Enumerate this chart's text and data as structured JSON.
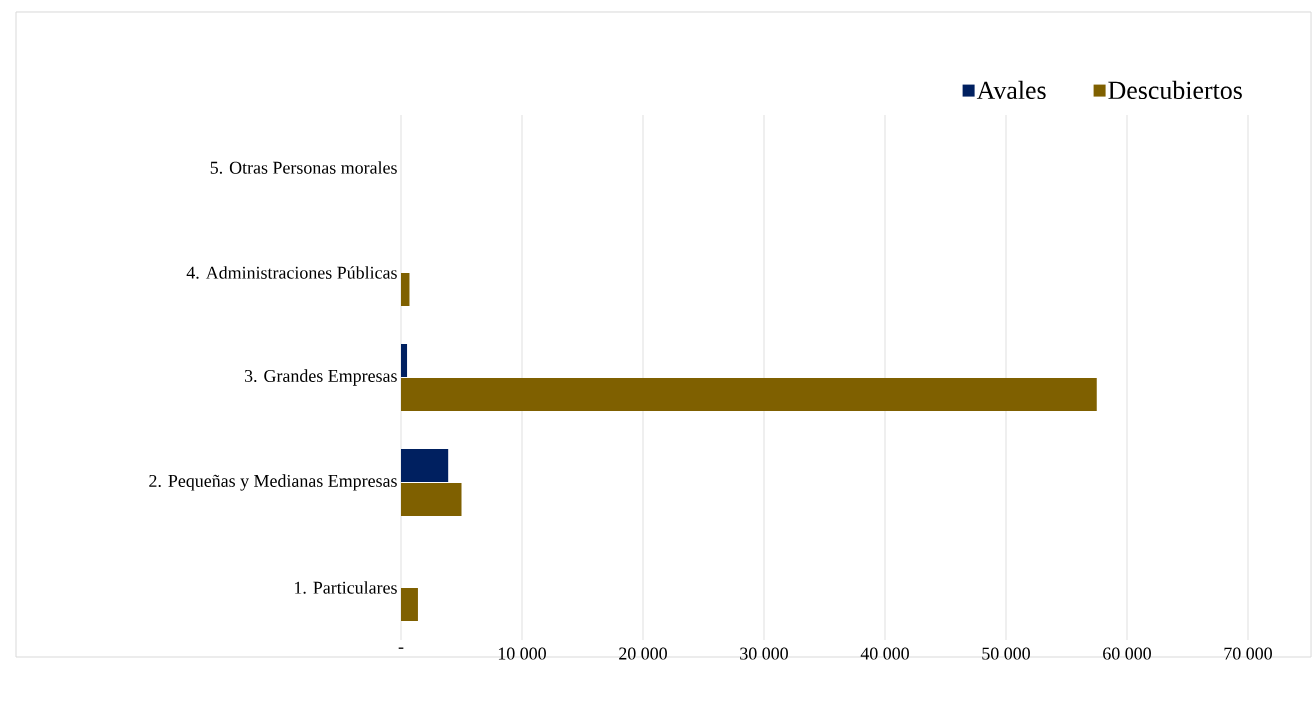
{
  "chart_data": {
    "type": "bar",
    "orientation": "horizontal",
    "categories": [
      "5. Otras Personas morales",
      "4. Administraciones Públicas",
      "3. Grandes Empresas",
      "2. Pequeñas y Medianas Empresas",
      "1. Particulares"
    ],
    "series": [
      {
        "name": "Avales",
        "color": "#002060",
        "values": [
          0,
          0,
          500,
          3900,
          0
        ]
      },
      {
        "name": "Descubiertos",
        "color": "#7f6000",
        "values": [
          0,
          700,
          57500,
          5000,
          1400
        ]
      }
    ],
    "xlim": [
      0,
      70000
    ],
    "xticks": [
      {
        "value": 0,
        "label": "-"
      },
      {
        "value": 10000,
        "label": "10 000"
      },
      {
        "value": 20000,
        "label": "20 000"
      },
      {
        "value": 30000,
        "label": "30 000"
      },
      {
        "value": 40000,
        "label": "40 000"
      },
      {
        "value": 50000,
        "label": "50 000"
      },
      {
        "value": 60000,
        "label": "60 000"
      },
      {
        "value": 70000,
        "label": "70 000"
      }
    ],
    "grid": "x",
    "legend": "top right"
  }
}
